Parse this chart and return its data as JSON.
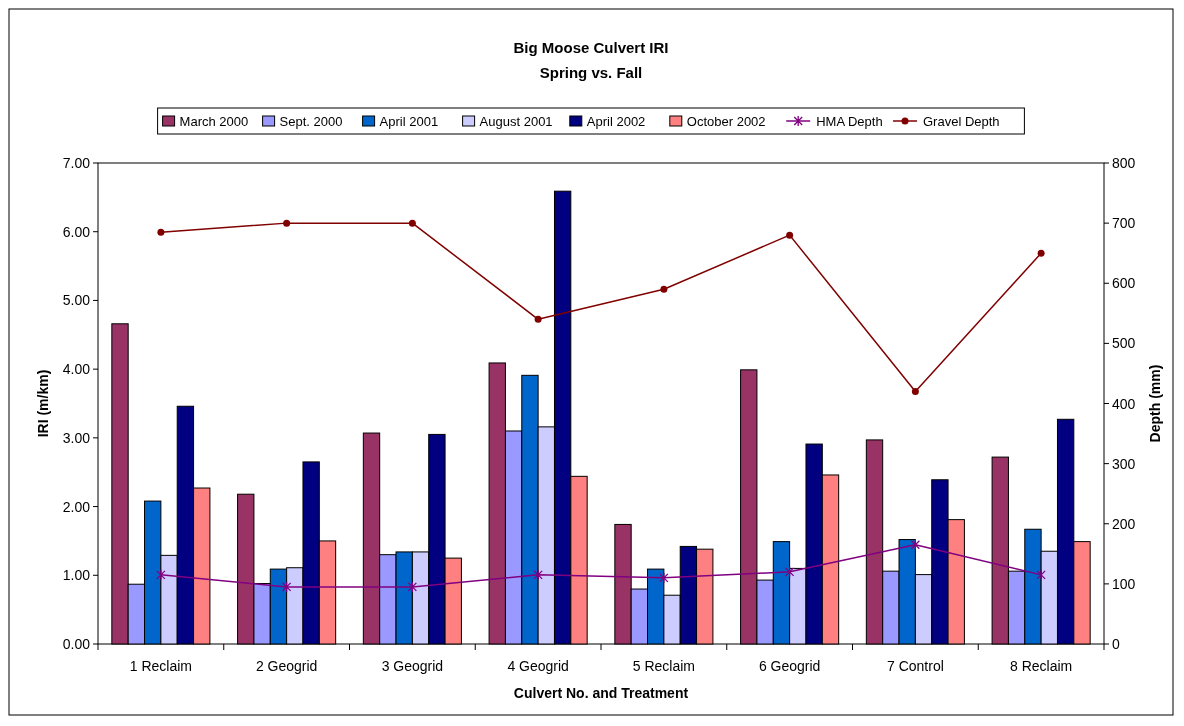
{
  "chart_data": {
    "type": "bar",
    "title": "Big Moose Culvert IRI",
    "subtitle": "Spring vs. Fall",
    "xlabel": "Culvert No. and Treatment",
    "ylabel": "IRI (m/km)",
    "y2label": "Depth (mm)",
    "categories": [
      "1 Reclaim",
      "2 Geogrid",
      "3 Geogrid",
      "4 Geogrid",
      "5 Reclaim",
      "6 Geogrid",
      "7 Control",
      "8 Reclaim"
    ],
    "ylim": [
      0,
      7
    ],
    "yticks": [
      {
        "value": 0,
        "label": "0.00"
      },
      {
        "value": 1,
        "label": "1.00"
      },
      {
        "value": 2,
        "label": "2.00"
      },
      {
        "value": 3,
        "label": "3.00"
      },
      {
        "value": 4,
        "label": "4.00"
      },
      {
        "value": 5,
        "label": "5.00"
      },
      {
        "value": 6,
        "label": "6.00"
      },
      {
        "value": 7,
        "label": "7.00"
      }
    ],
    "y2lim": [
      0,
      800
    ],
    "y2ticks": [
      0,
      100,
      200,
      300,
      400,
      500,
      600,
      700,
      800
    ],
    "legend": "top",
    "grid": false,
    "series": [
      {
        "name": "March 2000",
        "color": "#993366",
        "values": [
          4.66,
          2.18,
          3.07,
          4.09,
          1.74,
          3.99,
          2.97,
          2.72
        ]
      },
      {
        "name": "Sept. 2000",
        "color": "#9999ff",
        "values": [
          0.87,
          0.88,
          1.3,
          3.1,
          0.8,
          0.93,
          1.06,
          1.06
        ]
      },
      {
        "name": "April 2001",
        "color": "#0066cc",
        "values": [
          2.08,
          1.09,
          1.34,
          3.91,
          1.09,
          1.49,
          1.52,
          1.67
        ]
      },
      {
        "name": "August 2001",
        "color": "#ccccff",
        "values": [
          1.29,
          1.11,
          1.34,
          3.16,
          0.71,
          1.1,
          1.01,
          1.35
        ]
      },
      {
        "name": "April 2002",
        "color": "#000080",
        "values": [
          3.46,
          2.65,
          3.05,
          6.59,
          1.42,
          2.91,
          2.39,
          3.27
        ]
      },
      {
        "name": "October 2002",
        "color": "#ff8080",
        "values": [
          2.27,
          1.5,
          1.25,
          2.44,
          1.38,
          2.46,
          1.81,
          1.49
        ]
      },
      {
        "name": "HMA Depth",
        "type": "line",
        "axis": "y2",
        "marker": "cross",
        "color": "#800080",
        "values": [
          115,
          95,
          95,
          115,
          110,
          120,
          165,
          115
        ]
      },
      {
        "name": "Gravel Depth",
        "type": "line",
        "axis": "y2",
        "marker": "circle",
        "color": "#800000",
        "values": [
          685,
          700,
          700,
          540,
          590,
          680,
          420,
          650
        ]
      }
    ]
  }
}
